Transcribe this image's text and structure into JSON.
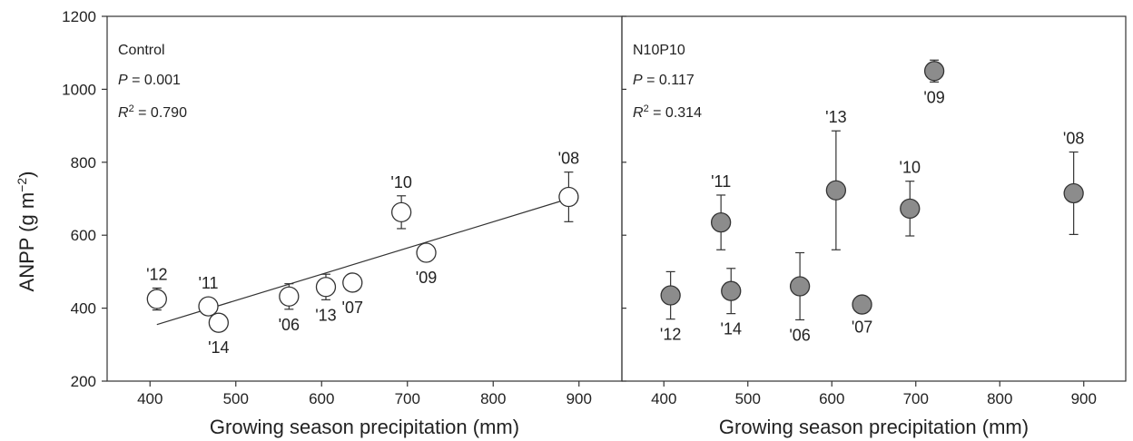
{
  "chart_data": [
    {
      "type": "scatter",
      "panel_label": "Control",
      "p_value": "0.001",
      "r2_value": "0.790",
      "xlabel": "Growing season precipitation (mm)",
      "ylabel": "ANPP (g m−2)",
      "xlim": [
        350,
        950
      ],
      "ylim": [
        200,
        1200
      ],
      "xticks": [
        400,
        500,
        600,
        700,
        800,
        900
      ],
      "yticks": [
        200,
        400,
        600,
        800,
        1000,
        1200
      ],
      "marker": "open-circle",
      "marker_color": "#ffffff",
      "regression_line": {
        "x": [
          408,
          888
        ],
        "y": [
          355,
          700
        ]
      },
      "points": [
        {
          "label": "'12",
          "x": 408,
          "y": 425,
          "err": 30,
          "label_pos": "above"
        },
        {
          "label": "'11",
          "x": 468,
          "y": 405,
          "err": 0,
          "label_pos": "above"
        },
        {
          "label": "'14",
          "x": 480,
          "y": 360,
          "err": 0,
          "label_pos": "below"
        },
        {
          "label": "'06",
          "x": 562,
          "y": 432,
          "err": 35,
          "label_pos": "below"
        },
        {
          "label": "'13",
          "x": 605,
          "y": 458,
          "err": 35,
          "label_pos": "below"
        },
        {
          "label": "'07",
          "x": 636,
          "y": 470,
          "err": 0,
          "label_pos": "below"
        },
        {
          "label": "'10",
          "x": 693,
          "y": 663,
          "err": 45,
          "label_pos": "above"
        },
        {
          "label": "'09",
          "x": 722,
          "y": 552,
          "err": 0,
          "label_pos": "below"
        },
        {
          "label": "'08",
          "x": 888,
          "y": 705,
          "err": 68,
          "label_pos": "above"
        }
      ]
    },
    {
      "type": "scatter",
      "panel_label": "N10P10",
      "p_value": "0.117",
      "r2_value": "0.314",
      "xlabel": "Growing season precipitation (mm)",
      "ylabel": "",
      "xlim": [
        350,
        950
      ],
      "ylim": [
        200,
        1200
      ],
      "xticks": [
        400,
        500,
        600,
        700,
        800,
        900
      ],
      "yticks": [
        200,
        400,
        600,
        800,
        1000,
        1200
      ],
      "marker": "filled-circle",
      "marker_color": "#8c8c8c",
      "points": [
        {
          "label": "'12",
          "x": 408,
          "y": 435,
          "err": 65,
          "label_pos": "below"
        },
        {
          "label": "'11",
          "x": 468,
          "y": 635,
          "err": 75,
          "label_pos": "above"
        },
        {
          "label": "'14",
          "x": 480,
          "y": 447,
          "err": 62,
          "label_pos": "below"
        },
        {
          "label": "'06",
          "x": 562,
          "y": 460,
          "err": 92,
          "label_pos": "below"
        },
        {
          "label": "'13",
          "x": 605,
          "y": 723,
          "err": 163,
          "label_pos": "above"
        },
        {
          "label": "'07",
          "x": 636,
          "y": 410,
          "err": 20,
          "label_pos": "below"
        },
        {
          "label": "'10",
          "x": 693,
          "y": 673,
          "err": 75,
          "label_pos": "above"
        },
        {
          "label": "'09",
          "x": 722,
          "y": 1050,
          "err": 30,
          "label_pos": "below"
        },
        {
          "label": "'08",
          "x": 888,
          "y": 715,
          "err": 113,
          "label_pos": "above"
        }
      ]
    }
  ]
}
